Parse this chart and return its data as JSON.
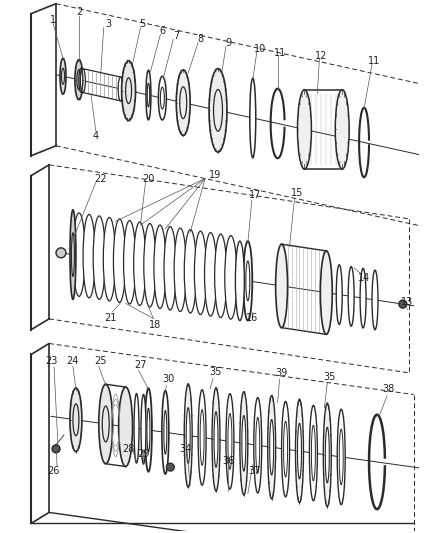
{
  "background_color": "#ffffff",
  "line_color": "#2a2a2a",
  "label_color": "#222222",
  "fig_width": 4.38,
  "fig_height": 5.33,
  "dpi": 100
}
